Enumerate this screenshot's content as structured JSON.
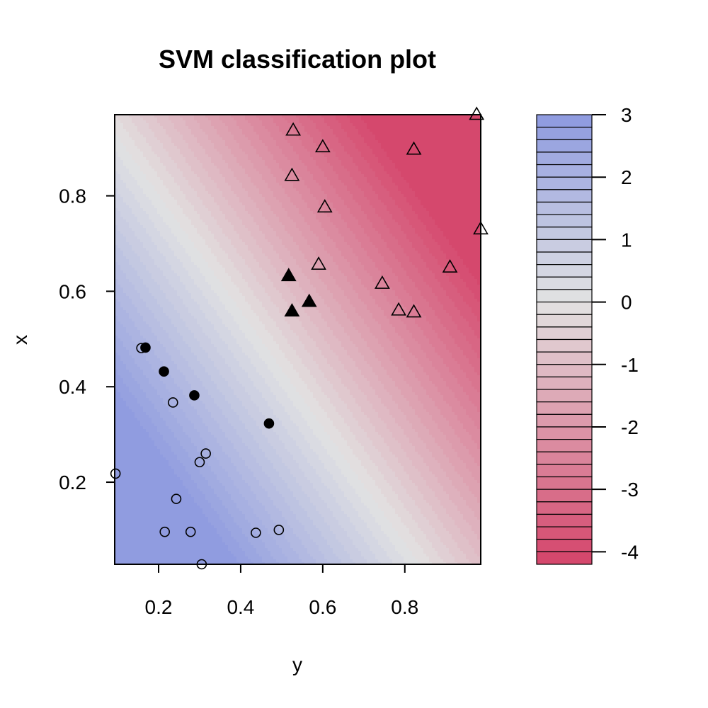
{
  "chart_data": {
    "type": "scatter",
    "subtype": "svm-classification-contour",
    "title": "SVM classification plot",
    "xlabel": "y",
    "ylabel": "x",
    "xlim": [
      0.093,
      0.985
    ],
    "ylim": [
      0.028,
      0.97
    ],
    "xticks": [
      0.2,
      0.4,
      0.6,
      0.8
    ],
    "yticks": [
      0.2,
      0.4,
      0.6,
      0.8
    ],
    "xtick_labels": [
      "0.2",
      "0.4",
      "0.6",
      "0.8"
    ],
    "ytick_labels": [
      "0.2",
      "0.4",
      "0.6",
      "0.8"
    ],
    "decision_function": {
      "value_range": [
        -4.2,
        3.0
      ],
      "color_low": "#d5446a",
      "color_mid": "#e2e2e2",
      "color_high": "#8d9ae0",
      "legend_levels": 36,
      "legend_ticks": [
        3,
        2,
        1,
        0,
        -1,
        -2,
        -3,
        -4
      ],
      "legend_tick_labels": [
        "3",
        "2",
        "1",
        "0",
        "-1",
        "-2",
        "-3",
        "-4"
      ]
    },
    "classes": [
      {
        "marker": "circle",
        "points": [
          {
            "x": 0.158,
            "y": 0.481,
            "sv": false
          },
          {
            "x": 0.168,
            "y": 0.482,
            "sv": true
          },
          {
            "x": 0.213,
            "y": 0.432,
            "sv": true
          },
          {
            "x": 0.287,
            "y": 0.382,
            "sv": true
          },
          {
            "x": 0.235,
            "y": 0.367,
            "sv": false
          },
          {
            "x": 0.469,
            "y": 0.323,
            "sv": true
          },
          {
            "x": 0.315,
            "y": 0.26,
            "sv": false
          },
          {
            "x": 0.3,
            "y": 0.242,
            "sv": false
          },
          {
            "x": 0.095,
            "y": 0.218,
            "sv": false
          },
          {
            "x": 0.243,
            "y": 0.165,
            "sv": false
          },
          {
            "x": 0.215,
            "y": 0.096,
            "sv": false
          },
          {
            "x": 0.278,
            "y": 0.096,
            "sv": false
          },
          {
            "x": 0.437,
            "y": 0.094,
            "sv": false
          },
          {
            "x": 0.493,
            "y": 0.1,
            "sv": false
          },
          {
            "x": 0.305,
            "y": 0.028,
            "sv": false
          }
        ]
      },
      {
        "marker": "triangle",
        "points": [
          {
            "x": 0.528,
            "y": 0.937,
            "sv": false
          },
          {
            "x": 0.6,
            "y": 0.902,
            "sv": false
          },
          {
            "x": 0.822,
            "y": 0.897,
            "sv": false
          },
          {
            "x": 0.975,
            "y": 0.97,
            "sv": false
          },
          {
            "x": 0.525,
            "y": 0.842,
            "sv": false
          },
          {
            "x": 0.605,
            "y": 0.776,
            "sv": false
          },
          {
            "x": 0.985,
            "y": 0.73,
            "sv": false
          },
          {
            "x": 0.59,
            "y": 0.656,
            "sv": false
          },
          {
            "x": 0.91,
            "y": 0.65,
            "sv": false
          },
          {
            "x": 0.517,
            "y": 0.632,
            "sv": true
          },
          {
            "x": 0.745,
            "y": 0.616,
            "sv": false
          },
          {
            "x": 0.567,
            "y": 0.578,
            "sv": true
          },
          {
            "x": 0.525,
            "y": 0.558,
            "sv": true
          },
          {
            "x": 0.785,
            "y": 0.56,
            "sv": false
          },
          {
            "x": 0.822,
            "y": 0.556,
            "sv": false
          }
        ]
      }
    ]
  }
}
